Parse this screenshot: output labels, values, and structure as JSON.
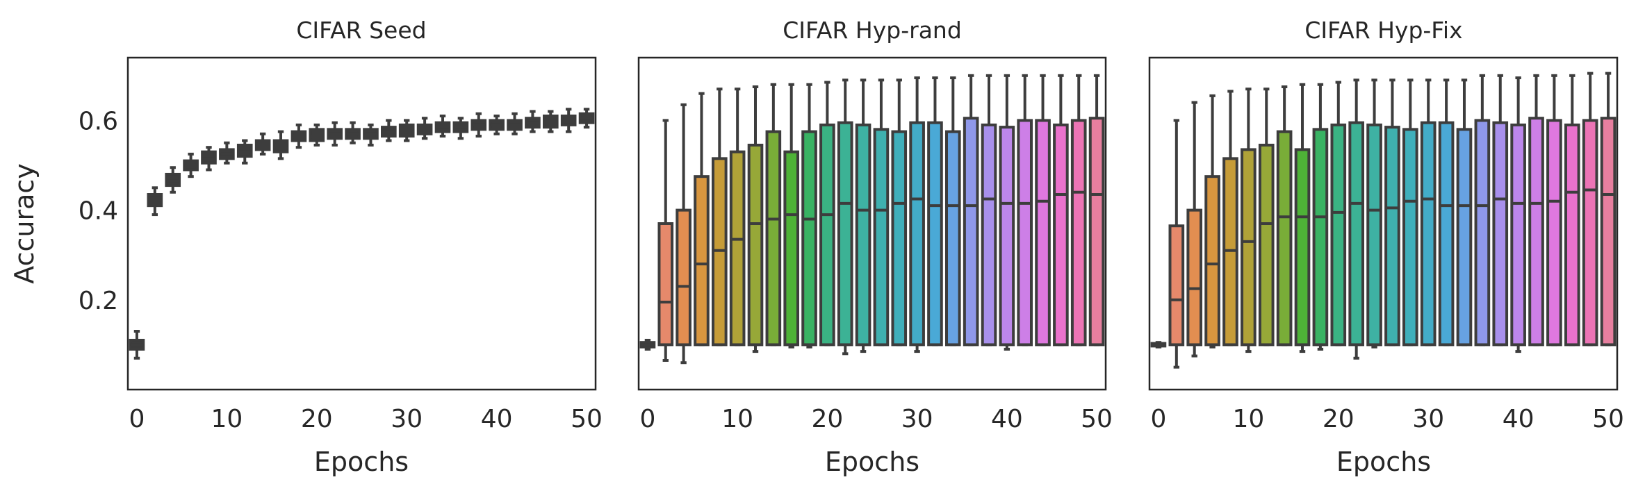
{
  "chart_data": [
    {
      "type": "box",
      "title": "CIFAR Seed",
      "xlabel": "Epochs",
      "ylabel": "Accuracy",
      "xlim": [
        -1,
        51
      ],
      "ylim": [
        0,
        0.74
      ],
      "xticks": [
        0,
        10,
        20,
        30,
        40,
        50
      ],
      "yticks": [
        0.2,
        0.4,
        0.6
      ],
      "x": [
        0,
        2,
        4,
        6,
        8,
        10,
        12,
        14,
        16,
        18,
        20,
        22,
        24,
        26,
        28,
        30,
        32,
        34,
        36,
        38,
        40,
        42,
        44,
        46,
        48,
        50
      ],
      "boxes": [
        {
          "low": 0.07,
          "q1": 0.09,
          "median": 0.1,
          "q3": 0.11,
          "high": 0.13
        },
        {
          "low": 0.39,
          "q1": 0.41,
          "median": 0.425,
          "q3": 0.435,
          "high": 0.45
        },
        {
          "low": 0.44,
          "q1": 0.455,
          "median": 0.465,
          "q3": 0.48,
          "high": 0.495
        },
        {
          "low": 0.475,
          "q1": 0.49,
          "median": 0.5,
          "q3": 0.51,
          "high": 0.525
        },
        {
          "low": 0.49,
          "q1": 0.505,
          "median": 0.515,
          "q3": 0.53,
          "high": 0.54
        },
        {
          "low": 0.505,
          "q1": 0.515,
          "median": 0.525,
          "q3": 0.535,
          "high": 0.55
        },
        {
          "low": 0.505,
          "q1": 0.52,
          "median": 0.53,
          "q3": 0.545,
          "high": 0.555
        },
        {
          "low": 0.525,
          "q1": 0.535,
          "median": 0.545,
          "q3": 0.555,
          "high": 0.57
        },
        {
          "low": 0.515,
          "q1": 0.53,
          "median": 0.545,
          "q3": 0.555,
          "high": 0.575
        },
        {
          "low": 0.54,
          "q1": 0.555,
          "median": 0.565,
          "q3": 0.575,
          "high": 0.59
        },
        {
          "low": 0.545,
          "q1": 0.555,
          "median": 0.565,
          "q3": 0.58,
          "high": 0.59
        },
        {
          "low": 0.545,
          "q1": 0.56,
          "median": 0.57,
          "q3": 0.58,
          "high": 0.595
        },
        {
          "low": 0.55,
          "q1": 0.56,
          "median": 0.57,
          "q3": 0.58,
          "high": 0.595
        },
        {
          "low": 0.545,
          "q1": 0.56,
          "median": 0.57,
          "q3": 0.58,
          "high": 0.59
        },
        {
          "low": 0.555,
          "q1": 0.565,
          "median": 0.575,
          "q3": 0.585,
          "high": 0.6
        },
        {
          "low": 0.555,
          "q1": 0.565,
          "median": 0.58,
          "q3": 0.59,
          "high": 0.6
        },
        {
          "low": 0.56,
          "q1": 0.57,
          "median": 0.58,
          "q3": 0.59,
          "high": 0.605
        },
        {
          "low": 0.565,
          "q1": 0.575,
          "median": 0.585,
          "q3": 0.595,
          "high": 0.61
        },
        {
          "low": 0.56,
          "q1": 0.575,
          "median": 0.585,
          "q3": 0.595,
          "high": 0.605
        },
        {
          "low": 0.565,
          "q1": 0.58,
          "median": 0.59,
          "q3": 0.6,
          "high": 0.615
        },
        {
          "low": 0.57,
          "q1": 0.58,
          "median": 0.59,
          "q3": 0.6,
          "high": 0.61
        },
        {
          "low": 0.57,
          "q1": 0.58,
          "median": 0.59,
          "q3": 0.6,
          "high": 0.615
        },
        {
          "low": 0.575,
          "q1": 0.585,
          "median": 0.595,
          "q3": 0.605,
          "high": 0.62
        },
        {
          "low": 0.575,
          "q1": 0.585,
          "median": 0.6,
          "q3": 0.61,
          "high": 0.62
        },
        {
          "low": 0.575,
          "q1": 0.59,
          "median": 0.6,
          "q3": 0.61,
          "high": 0.625
        },
        {
          "low": 0.585,
          "q1": 0.595,
          "median": 0.605,
          "q3": 0.615,
          "high": 0.625
        }
      ]
    },
    {
      "type": "box",
      "title": "CIFAR Hyp-rand",
      "xlabel": "Epochs",
      "ylabel": "",
      "xlim": [
        -1,
        51
      ],
      "ylim": [
        0,
        0.74
      ],
      "xticks": [
        0,
        10,
        20,
        30,
        40,
        50
      ],
      "yticks": [],
      "x": [
        0,
        2,
        4,
        6,
        8,
        10,
        12,
        14,
        16,
        18,
        20,
        22,
        24,
        26,
        28,
        30,
        32,
        34,
        36,
        38,
        40,
        42,
        44,
        46,
        48,
        50
      ],
      "boxes": [
        {
          "low": 0.09,
          "q1": 0.095,
          "median": 0.1,
          "q3": 0.105,
          "high": 0.11
        },
        {
          "low": 0.065,
          "q1": 0.1,
          "median": 0.195,
          "q3": 0.37,
          "high": 0.6
        },
        {
          "low": 0.06,
          "q1": 0.1,
          "median": 0.23,
          "q3": 0.4,
          "high": 0.635
        },
        {
          "low": 0.1,
          "q1": 0.1,
          "median": 0.28,
          "q3": 0.475,
          "high": 0.66
        },
        {
          "low": 0.1,
          "q1": 0.1,
          "median": 0.31,
          "q3": 0.515,
          "high": 0.67
        },
        {
          "low": 0.1,
          "q1": 0.1,
          "median": 0.335,
          "q3": 0.53,
          "high": 0.67
        },
        {
          "low": 0.085,
          "q1": 0.1,
          "median": 0.37,
          "q3": 0.545,
          "high": 0.675
        },
        {
          "low": 0.1,
          "q1": 0.1,
          "median": 0.38,
          "q3": 0.575,
          "high": 0.68
        },
        {
          "low": 0.095,
          "q1": 0.1,
          "median": 0.39,
          "q3": 0.53,
          "high": 0.68
        },
        {
          "low": 0.095,
          "q1": 0.1,
          "median": 0.38,
          "q3": 0.575,
          "high": 0.68
        },
        {
          "low": 0.1,
          "q1": 0.1,
          "median": 0.39,
          "q3": 0.59,
          "high": 0.685
        },
        {
          "low": 0.08,
          "q1": 0.1,
          "median": 0.415,
          "q3": 0.595,
          "high": 0.69
        },
        {
          "low": 0.085,
          "q1": 0.1,
          "median": 0.4,
          "q3": 0.59,
          "high": 0.69
        },
        {
          "low": 0.1,
          "q1": 0.1,
          "median": 0.4,
          "q3": 0.58,
          "high": 0.69
        },
        {
          "low": 0.1,
          "q1": 0.1,
          "median": 0.415,
          "q3": 0.575,
          "high": 0.69
        },
        {
          "low": 0.085,
          "q1": 0.1,
          "median": 0.425,
          "q3": 0.595,
          "high": 0.695
        },
        {
          "low": 0.1,
          "q1": 0.1,
          "median": 0.41,
          "q3": 0.595,
          "high": 0.695
        },
        {
          "low": 0.1,
          "q1": 0.1,
          "median": 0.41,
          "q3": 0.575,
          "high": 0.695
        },
        {
          "low": 0.1,
          "q1": 0.1,
          "median": 0.41,
          "q3": 0.605,
          "high": 0.7
        },
        {
          "low": 0.1,
          "q1": 0.1,
          "median": 0.425,
          "q3": 0.59,
          "high": 0.7
        },
        {
          "low": 0.09,
          "q1": 0.1,
          "median": 0.415,
          "q3": 0.585,
          "high": 0.7
        },
        {
          "low": 0.1,
          "q1": 0.1,
          "median": 0.415,
          "q3": 0.6,
          "high": 0.7
        },
        {
          "low": 0.1,
          "q1": 0.1,
          "median": 0.42,
          "q3": 0.6,
          "high": 0.7
        },
        {
          "low": 0.1,
          "q1": 0.1,
          "median": 0.435,
          "q3": 0.59,
          "high": 0.7
        },
        {
          "low": 0.1,
          "q1": 0.1,
          "median": 0.44,
          "q3": 0.6,
          "high": 0.7
        },
        {
          "low": 0.1,
          "q1": 0.1,
          "median": 0.435,
          "q3": 0.605,
          "high": 0.7
        }
      ]
    },
    {
      "type": "box",
      "title": "CIFAR Hyp-Fix",
      "xlabel": "Epochs",
      "ylabel": "",
      "xlim": [
        -1,
        51
      ],
      "ylim": [
        0,
        0.74
      ],
      "xticks": [
        0,
        10,
        20,
        30,
        40,
        50
      ],
      "yticks": [],
      "x": [
        0,
        2,
        4,
        6,
        8,
        10,
        12,
        14,
        16,
        18,
        20,
        22,
        24,
        26,
        28,
        30,
        32,
        34,
        36,
        38,
        40,
        42,
        44,
        46,
        48,
        50
      ],
      "boxes": [
        {
          "low": 0.095,
          "q1": 0.097,
          "median": 0.1,
          "q3": 0.103,
          "high": 0.105
        },
        {
          "low": 0.05,
          "q1": 0.1,
          "median": 0.2,
          "q3": 0.365,
          "high": 0.6
        },
        {
          "low": 0.075,
          "q1": 0.1,
          "median": 0.225,
          "q3": 0.4,
          "high": 0.64
        },
        {
          "low": 0.095,
          "q1": 0.1,
          "median": 0.28,
          "q3": 0.475,
          "high": 0.655
        },
        {
          "low": 0.1,
          "q1": 0.1,
          "median": 0.31,
          "q3": 0.515,
          "high": 0.665
        },
        {
          "low": 0.085,
          "q1": 0.1,
          "median": 0.33,
          "q3": 0.535,
          "high": 0.67
        },
        {
          "low": 0.1,
          "q1": 0.1,
          "median": 0.37,
          "q3": 0.545,
          "high": 0.67
        },
        {
          "low": 0.1,
          "q1": 0.1,
          "median": 0.385,
          "q3": 0.575,
          "high": 0.675
        },
        {
          "low": 0.085,
          "q1": 0.1,
          "median": 0.385,
          "q3": 0.535,
          "high": 0.68
        },
        {
          "low": 0.09,
          "q1": 0.1,
          "median": 0.385,
          "q3": 0.58,
          "high": 0.68
        },
        {
          "low": 0.1,
          "q1": 0.1,
          "median": 0.395,
          "q3": 0.59,
          "high": 0.685
        },
        {
          "low": 0.07,
          "q1": 0.1,
          "median": 0.415,
          "q3": 0.595,
          "high": 0.69
        },
        {
          "low": 0.095,
          "q1": 0.1,
          "median": 0.4,
          "q3": 0.59,
          "high": 0.69
        },
        {
          "low": 0.1,
          "q1": 0.1,
          "median": 0.405,
          "q3": 0.585,
          "high": 0.69
        },
        {
          "low": 0.1,
          "q1": 0.1,
          "median": 0.42,
          "q3": 0.58,
          "high": 0.69
        },
        {
          "low": 0.1,
          "q1": 0.1,
          "median": 0.425,
          "q3": 0.595,
          "high": 0.69
        },
        {
          "low": 0.1,
          "q1": 0.1,
          "median": 0.41,
          "q3": 0.595,
          "high": 0.69
        },
        {
          "low": 0.1,
          "q1": 0.1,
          "median": 0.41,
          "q3": 0.58,
          "high": 0.69
        },
        {
          "low": 0.1,
          "q1": 0.1,
          "median": 0.41,
          "q3": 0.6,
          "high": 0.7
        },
        {
          "low": 0.1,
          "q1": 0.1,
          "median": 0.425,
          "q3": 0.595,
          "high": 0.7
        },
        {
          "low": 0.085,
          "q1": 0.1,
          "median": 0.415,
          "q3": 0.59,
          "high": 0.695
        },
        {
          "low": 0.1,
          "q1": 0.1,
          "median": 0.415,
          "q3": 0.605,
          "high": 0.7
        },
        {
          "low": 0.1,
          "q1": 0.1,
          "median": 0.42,
          "q3": 0.6,
          "high": 0.7
        },
        {
          "low": 0.1,
          "q1": 0.1,
          "median": 0.44,
          "q3": 0.59,
          "high": 0.7
        },
        {
          "low": 0.1,
          "q1": 0.1,
          "median": 0.445,
          "q3": 0.6,
          "high": 0.705
        },
        {
          "low": 0.1,
          "q1": 0.1,
          "median": 0.435,
          "q3": 0.605,
          "high": 0.705
        }
      ]
    }
  ],
  "colors": {
    "seed_box": "#3d3d3d",
    "edge": "#3d3d3d",
    "palette": [
      "#e58b8b",
      "#e6896b",
      "#e28e51",
      "#d8963f",
      "#c69c38",
      "#b0a238",
      "#97a838",
      "#79ad38",
      "#4eb237",
      "#39b263",
      "#3ab383",
      "#3cb295",
      "#3eb1a3",
      "#3fb0af",
      "#40afbb",
      "#43acc8",
      "#4aa9d6",
      "#67a2e2",
      "#8f98ea",
      "#a890ec",
      "#bc87eb",
      "#cd7fe7",
      "#df78df",
      "#ea72cc",
      "#ec74b5",
      "#e77f9f"
    ]
  }
}
